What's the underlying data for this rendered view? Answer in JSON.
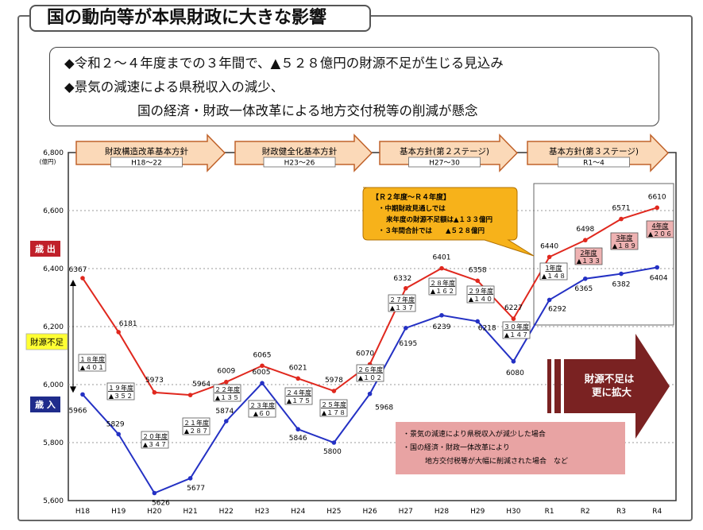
{
  "title": "国の動向等が本県財政に大きな影響",
  "summary": {
    "line1": "◆令和２～４年度までの３年間で、▲５２８億円の財源不足が生じる見込み",
    "line2": "◆景気の減速による県税収入の減少、",
    "line3": "国の経済・財政一体改革による地方交付税等の削減が懸念"
  },
  "phases": [
    {
      "name": "財政構造改革基本方針",
      "period": "H18～22"
    },
    {
      "name": "財政健全化基本方針",
      "period": "H23～26"
    },
    {
      "name": "基本方針(第２ステージ)",
      "period": "H27～30"
    },
    {
      "name": "基本方針(第３ステージ)",
      "period": "R1～4"
    }
  ],
  "legend": {
    "expenditure": "歳 出",
    "revenue": "歳 入",
    "shortfall": "財源不足"
  },
  "callout": {
    "heading": "【Ｒ２年度～Ｒ４年度】",
    "lines": [
      "・中期財政見通しでは",
      "来年度の財源不足額は▲１３３億円",
      "・３年間合計では　　▲５２８億円"
    ]
  },
  "arrow_text": [
    "財源不足は",
    "更に拡大"
  ],
  "risk_note": {
    "line1": "・景気の減速により県税収入が減少した場合",
    "line2": "・国の経済・財政一体改革により",
    "line3": "地方交付税等が大幅に削減された場合　など"
  },
  "chart_data": {
    "type": "line",
    "x": [
      "H18",
      "H19",
      "H20",
      "H21",
      "H22",
      "H23",
      "H24",
      "H25",
      "H26",
      "H27",
      "H28",
      "H29",
      "H30",
      "R1",
      "R2",
      "R3",
      "R4"
    ],
    "series": [
      {
        "name": "歳 出",
        "color": "#e0281e",
        "values": [
          6367,
          6181,
          5973,
          5964,
          6009,
          6065,
          6021,
          5978,
          6070,
          6332,
          6401,
          6358,
          6227,
          6440,
          6498,
          6571,
          6610
        ]
      },
      {
        "name": "歳 入",
        "color": "#2431c4",
        "values": [
          5966,
          5829,
          5626,
          5677,
          5874,
          6005,
          5846,
          5800,
          5968,
          6195,
          6239,
          6218,
          6080,
          6292,
          6365,
          6382,
          6404
        ]
      }
    ],
    "shortfall_labels": [
      {
        "x": "H18",
        "year": "１８年度",
        "value": "▲４０１"
      },
      {
        "x": "H19",
        "year": "１９年度",
        "value": "▲３５２"
      },
      {
        "x": "H20",
        "year": "２０年度",
        "value": "▲３４７"
      },
      {
        "x": "H21",
        "year": "２１年度",
        "value": "▲２８７"
      },
      {
        "x": "H22",
        "year": "２２年度",
        "value": "▲１３５"
      },
      {
        "x": "H23",
        "year": "２３年度",
        "value": "▲６０"
      },
      {
        "x": "H24",
        "year": "２４年度",
        "value": "▲１７５"
      },
      {
        "x": "H25",
        "year": "２５年度",
        "value": "▲１７８"
      },
      {
        "x": "H26",
        "year": "２６年度",
        "value": "▲１０２"
      },
      {
        "x": "H27",
        "year": "２７年度",
        "value": "▲１３７"
      },
      {
        "x": "H28",
        "year": "２８年度",
        "value": "▲１６２"
      },
      {
        "x": "H29",
        "year": "２９年度",
        "value": "▲１４０"
      },
      {
        "x": "H30",
        "year": "３０年度",
        "value": "▲１４７"
      },
      {
        "x": "R1",
        "year": "1年度",
        "value": "▲１４８"
      },
      {
        "x": "R2",
        "year": "2年度",
        "value": "▲１３３"
      },
      {
        "x": "R3",
        "year": "3年度",
        "value": "▲１８９"
      },
      {
        "x": "R4",
        "year": "4年度",
        "value": "▲２０６"
      }
    ],
    "y_ticks": [
      "5,600",
      "5,800",
      "6,000",
      "6,200",
      "6,400",
      "6,600",
      "6,800"
    ],
    "y_unit": "(億円)",
    "ylim": [
      5600,
      6800
    ],
    "grid": "horizontal dotted"
  },
  "colors": {
    "expenditure": "#e0281e",
    "revenue": "#2431c4",
    "phase_fill": "#fbd9b8",
    "phase_stroke": "#c0622a",
    "callout_fill": "#f7b21a",
    "arrow_fill": "#7a2222",
    "note_fill": "#e8a3a3",
    "shortfall_fill": "#ffff33"
  }
}
